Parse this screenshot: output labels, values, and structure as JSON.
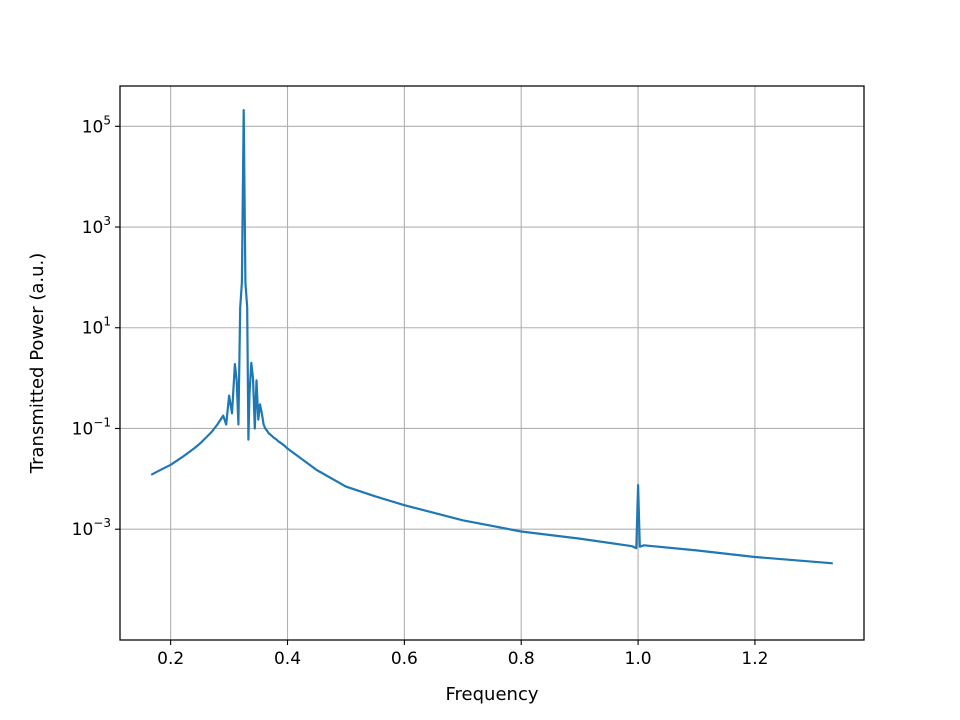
{
  "chart_data": {
    "type": "line",
    "title": "",
    "xlabel": "Frequency",
    "ylabel": "Transmitted Power (a.u.)",
    "xscale": "linear",
    "yscale": "log",
    "xlim": [
      0.1133,
      1.3867
    ],
    "ylim": [
      6.31e-06,
      631000
    ],
    "grid": true,
    "legend": "none",
    "x_ticks": [
      {
        "value": 0.2,
        "label": "0.2"
      },
      {
        "value": 0.4,
        "label": "0.4"
      },
      {
        "value": 0.6,
        "label": "0.6"
      },
      {
        "value": 0.8,
        "label": "0.8"
      },
      {
        "value": 1.0,
        "label": "1.0"
      },
      {
        "value": 1.2,
        "label": "1.2"
      }
    ],
    "y_ticks": [
      {
        "value": 0.001,
        "base": "10",
        "exp": "−3"
      },
      {
        "value": 0.1,
        "base": "10",
        "exp": "−1"
      },
      {
        "value": 10,
        "base": "10",
        "exp": "1"
      },
      {
        "value": 1000,
        "base": "10",
        "exp": "3"
      },
      {
        "value": 100000,
        "base": "10",
        "exp": "5"
      }
    ],
    "series": [
      {
        "color": "#1f77b4",
        "x": [
          0.1667,
          0.18,
          0.2,
          0.22,
          0.24,
          0.25,
          0.26,
          0.27,
          0.28,
          0.29,
          0.295,
          0.3,
          0.305,
          0.31,
          0.313,
          0.316,
          0.319,
          0.322,
          0.325,
          0.328,
          0.331,
          0.333,
          0.335,
          0.338,
          0.341,
          0.344,
          0.347,
          0.35,
          0.353,
          0.356,
          0.359,
          0.362,
          0.365,
          0.368,
          0.371,
          0.374,
          0.377,
          0.38,
          0.385,
          0.39,
          0.395,
          0.4,
          0.45,
          0.5,
          0.55,
          0.6,
          0.7,
          0.8,
          0.9,
          0.99,
          0.997,
          1.0,
          1.003,
          1.01,
          1.1,
          1.2,
          1.3333
        ],
        "y": [
          0.012,
          0.0145,
          0.019,
          0.027,
          0.04,
          0.05,
          0.065,
          0.085,
          0.12,
          0.18,
          0.12,
          0.45,
          0.2,
          1.9,
          0.9,
          0.12,
          25,
          80,
          210000,
          80,
          25,
          0.06,
          0.5,
          2.0,
          1.0,
          0.1,
          0.9,
          0.15,
          0.3,
          0.2,
          0.12,
          0.1,
          0.09,
          0.08,
          0.075,
          0.07,
          0.065,
          0.062,
          0.055,
          0.05,
          0.045,
          0.04,
          0.015,
          0.007,
          0.0045,
          0.003,
          0.0015,
          0.0009,
          0.00065,
          0.00046,
          0.00042,
          0.0075,
          0.00045,
          0.00048,
          0.00038,
          0.00028,
          0.00021
        ]
      }
    ]
  }
}
